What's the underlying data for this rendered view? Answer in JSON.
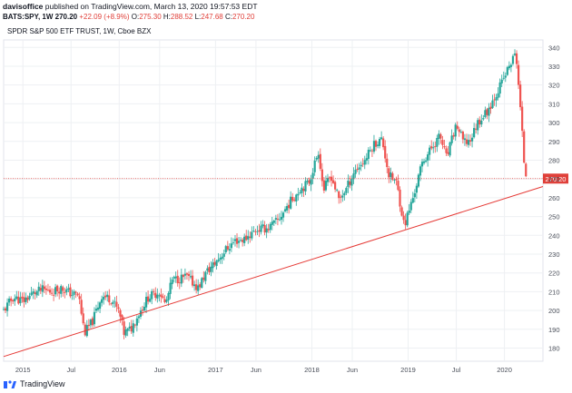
{
  "header": {
    "user": "davisoffice",
    "published": "published on TradingView.com, March 13, 2020 19:57:53 EDT",
    "symbol": "BATS:SPY, 1W",
    "last": "270.20",
    "change": "+22.09 (+8.9%)",
    "o_label": "O:",
    "o_value": "275.30",
    "h_label": "H:",
    "h_value": "288.52",
    "l_label": "L:",
    "l_value": "247.68",
    "c_label": "C:",
    "c_value": "270.20"
  },
  "footer": {
    "brand": "TradingView",
    "logo_icon": "tradingview-logo-icon"
  },
  "chart_data": {
    "type": "candlestick",
    "title": "SPDR S&P 500 ETF TRUST, 1W, Cboe BZX",
    "xlabel": "",
    "ylabel": "",
    "ylim": [
      173,
      344
    ],
    "yticks": [
      180,
      190,
      200,
      210,
      220,
      230,
      240,
      250,
      260,
      270,
      280,
      290,
      300,
      310,
      320,
      330,
      340
    ],
    "xticks": [
      {
        "label": "2015",
        "t": 2015.0
      },
      {
        "label": "Jul",
        "t": 2015.5
      },
      {
        "label": "2016",
        "t": 2016.0
      },
      {
        "label": "Jun",
        "t": 2016.42
      },
      {
        "label": "2017",
        "t": 2017.0
      },
      {
        "label": "Jun",
        "t": 2017.42
      },
      {
        "label": "2018",
        "t": 2018.0
      },
      {
        "label": "Jun",
        "t": 2018.42
      },
      {
        "label": "2019",
        "t": 2019.0
      },
      {
        "label": "Jul",
        "t": 2019.5
      },
      {
        "label": "2020",
        "t": 2020.0
      }
    ],
    "xlim": [
      2014.8,
      2020.4
    ],
    "grid": true,
    "colors": {
      "up": "#26a69a",
      "down": "#ef5350",
      "trendline": "#e53935",
      "price_line": "#e0403a",
      "grid": "#eef0f3"
    },
    "last_price": {
      "value": 270.2,
      "label": "270.20"
    },
    "trendline": {
      "points": [
        {
          "t": 2014.8,
          "v": 175.5
        },
        {
          "t": 2020.4,
          "v": 266.0
        }
      ]
    },
    "path": [
      [
        2014.8,
        200
      ],
      [
        2014.9,
        207
      ],
      [
        2015.0,
        205
      ],
      [
        2015.1,
        209
      ],
      [
        2015.2,
        211
      ],
      [
        2015.3,
        210
      ],
      [
        2015.4,
        212
      ],
      [
        2015.5,
        209
      ],
      [
        2015.58,
        208
      ],
      [
        2015.64,
        188
      ],
      [
        2015.72,
        194
      ],
      [
        2015.82,
        208
      ],
      [
        2015.92,
        206
      ],
      [
        2016.0,
        199
      ],
      [
        2016.05,
        188
      ],
      [
        2016.12,
        190
      ],
      [
        2016.2,
        198
      ],
      [
        2016.3,
        207
      ],
      [
        2016.42,
        210
      ],
      [
        2016.48,
        203
      ],
      [
        2016.55,
        216
      ],
      [
        2016.7,
        218
      ],
      [
        2016.82,
        212
      ],
      [
        2016.9,
        220
      ],
      [
        2016.99,
        225
      ],
      [
        2017.1,
        232
      ],
      [
        2017.2,
        237
      ],
      [
        2017.3,
        238
      ],
      [
        2017.42,
        243
      ],
      [
        2017.55,
        244
      ],
      [
        2017.65,
        248
      ],
      [
        2017.75,
        256
      ],
      [
        2017.88,
        265
      ],
      [
        2017.97,
        268
      ],
      [
        2018.07,
        285
      ],
      [
        2018.12,
        264
      ],
      [
        2018.2,
        272
      ],
      [
        2018.28,
        259
      ],
      [
        2018.36,
        265
      ],
      [
        2018.44,
        274
      ],
      [
        2018.55,
        280
      ],
      [
        2018.65,
        289
      ],
      [
        2018.73,
        291
      ],
      [
        2018.8,
        272
      ],
      [
        2018.88,
        268
      ],
      [
        2018.96,
        245
      ],
      [
        2019.05,
        260
      ],
      [
        2019.15,
        279
      ],
      [
        2019.25,
        287
      ],
      [
        2019.33,
        293
      ],
      [
        2019.4,
        281
      ],
      [
        2019.5,
        299
      ],
      [
        2019.58,
        289
      ],
      [
        2019.65,
        291
      ],
      [
        2019.72,
        300
      ],
      [
        2019.82,
        306
      ],
      [
        2019.9,
        314
      ],
      [
        2019.98,
        322
      ],
      [
        2020.05,
        330
      ],
      [
        2020.12,
        337
      ],
      [
        2020.15,
        318
      ],
      [
        2020.18,
        297
      ],
      [
        2020.21,
        275
      ],
      [
        2020.24,
        270
      ]
    ]
  }
}
